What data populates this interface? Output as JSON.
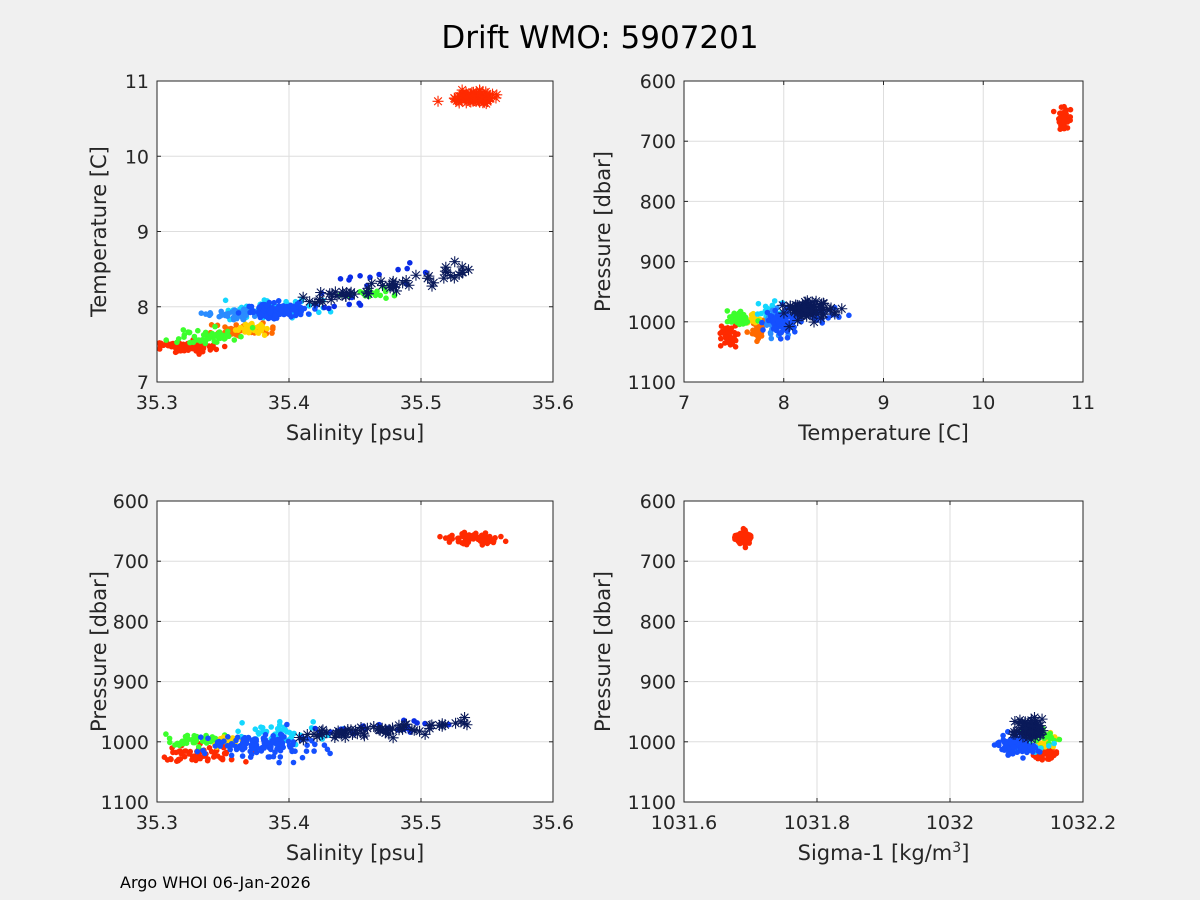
{
  "chart_data": {
    "title": "Drift WMO: 5907201",
    "footer": "Argo WHOI 06-Jan-2026",
    "colors": {
      "background": "#f0f0f0",
      "axes_bg": "#ffffff",
      "grid": "#dedede",
      "star": "#0a1a5a",
      "point_palette": [
        "#ff2a00",
        "#ff6a00",
        "#ffd400",
        "#a8ff00",
        "#3cff2c",
        "#14d7ff",
        "#2a8cff",
        "#1550ff",
        "#0a2ce6"
      ]
    },
    "charts": [
      {
        "type": "scatter",
        "name": "temperature-vs-salinity",
        "xlabel": "Salinity [psu]",
        "ylabel": "Temperature [C]",
        "xlim": [
          35.3,
          35.6
        ],
        "ylim": [
          7,
          11
        ],
        "y_reversed": false,
        "xticks": [
          35.3,
          35.4,
          35.5,
          35.6
        ],
        "xtick_labels": [
          "35.3",
          "35.4",
          "35.5",
          "35.6"
        ],
        "yticks": [
          7,
          8,
          9,
          10,
          11
        ],
        "ytick_labels": [
          "7",
          "8",
          "9",
          "10",
          "11"
        ],
        "clusters": [
          {
            "color": "#ff2a00",
            "cx": 35.32,
            "cy": 7.47,
            "sx": 0.012,
            "sy": 0.04,
            "n": 80
          },
          {
            "color": "#ff6a00",
            "cx": 35.36,
            "cy": 7.68,
            "sx": 0.012,
            "sy": 0.04,
            "n": 40
          },
          {
            "color": "#ffd400",
            "cx": 35.37,
            "cy": 7.72,
            "sx": 0.008,
            "sy": 0.04,
            "n": 30
          },
          {
            "color": "#3cff2c",
            "cx": 35.34,
            "cy": 7.6,
            "sx": 0.012,
            "sy": 0.05,
            "n": 50
          },
          {
            "color": "#14d7ff",
            "cx": 35.39,
            "cy": 7.97,
            "sx": 0.02,
            "sy": 0.06,
            "n": 60
          },
          {
            "color": "#2a8cff",
            "cx": 35.36,
            "cy": 7.9,
            "sx": 0.01,
            "sy": 0.04,
            "n": 40
          },
          {
            "color": "#1550ff",
            "cx": 35.39,
            "cy": 7.95,
            "sx": 0.012,
            "sy": 0.05,
            "n": 120
          },
          {
            "color": "#3cff2c",
            "cx": 35.46,
            "cy": 8.18,
            "sx": 0.012,
            "sy": 0.04,
            "n": 20
          }
        ],
        "lines": [
          {
            "color": "#0a2ce6",
            "x0": 35.42,
            "y0": 8.05,
            "x1": 35.5,
            "y1": 8.55,
            "n": 22,
            "j": 0.1
          }
        ],
        "stars": [
          {
            "color": "#ff2a00",
            "cx": 35.54,
            "cy": 10.78,
            "sx": 0.009,
            "sy": 0.04,
            "n": 70
          },
          {
            "color": "#0a1a5a",
            "x0": 35.41,
            "y0": 8.05,
            "x1": 35.54,
            "y1": 8.5,
            "n": 55,
            "j": 0.05
          }
        ]
      },
      {
        "type": "scatter",
        "name": "pressure-vs-temperature",
        "xlabel": "Temperature [C]",
        "ylabel": "Pressure [dbar]",
        "xlim": [
          7,
          11
        ],
        "ylim": [
          600,
          1100
        ],
        "y_reversed": true,
        "xticks": [
          7,
          8,
          9,
          10,
          11
        ],
        "xtick_labels": [
          "7",
          "8",
          "9",
          "10",
          "11"
        ],
        "yticks": [
          600,
          700,
          800,
          900,
          1000,
          1100
        ],
        "ytick_labels": [
          "600",
          "700",
          "800",
          "900",
          "1000",
          "1100"
        ],
        "clusters": [
          {
            "color": "#ff2a00",
            "cx": 10.8,
            "cy": 662,
            "sx": 0.03,
            "sy": 8,
            "n": 60
          },
          {
            "color": "#ff2a00",
            "cx": 7.45,
            "cy": 1025,
            "sx": 0.05,
            "sy": 8,
            "n": 40
          },
          {
            "color": "#ff6a00",
            "cx": 7.75,
            "cy": 1015,
            "sx": 0.05,
            "sy": 8,
            "n": 20
          },
          {
            "color": "#ffd400",
            "cx": 7.7,
            "cy": 995,
            "sx": 0.04,
            "sy": 6,
            "n": 15
          },
          {
            "color": "#3cff2c",
            "cx": 7.55,
            "cy": 995,
            "sx": 0.06,
            "sy": 6,
            "n": 40
          },
          {
            "color": "#14d7ff",
            "cx": 7.85,
            "cy": 985,
            "sx": 0.06,
            "sy": 10,
            "n": 30
          },
          {
            "color": "#2a8cff",
            "cx": 7.95,
            "cy": 1005,
            "sx": 0.06,
            "sy": 12,
            "n": 40
          },
          {
            "color": "#1550ff",
            "cx": 8.0,
            "cy": 1000,
            "sx": 0.08,
            "sy": 12,
            "n": 90
          },
          {
            "color": "#1550ff",
            "cx": 8.45,
            "cy": 988,
            "sx": 0.15,
            "sy": 8,
            "n": 15
          }
        ],
        "lines": [],
        "stars": [
          {
            "color": "#0a1a5a",
            "cx": 8.25,
            "cy": 978,
            "sx": 0.12,
            "sy": 9,
            "n": 70
          }
        ]
      },
      {
        "type": "scatter",
        "name": "pressure-vs-salinity",
        "xlabel": "Salinity [psu]",
        "ylabel": "Pressure [dbar]",
        "xlim": [
          35.3,
          35.6
        ],
        "ylim": [
          600,
          1100
        ],
        "y_reversed": true,
        "xticks": [
          35.3,
          35.4,
          35.5,
          35.6
        ],
        "xtick_labels": [
          "35.3",
          "35.4",
          "35.5",
          "35.6"
        ],
        "yticks": [
          600,
          700,
          800,
          900,
          1000,
          1100
        ],
        "ytick_labels": [
          "600",
          "700",
          "800",
          "900",
          "1000",
          "1100"
        ],
        "clusters": [
          {
            "color": "#ff2a00",
            "cx": 35.54,
            "cy": 663,
            "sx": 0.009,
            "sy": 5,
            "n": 60
          },
          {
            "color": "#ff2a00",
            "cx": 35.33,
            "cy": 1022,
            "sx": 0.018,
            "sy": 7,
            "n": 60
          },
          {
            "color": "#3cff2c",
            "cx": 35.33,
            "cy": 998,
            "sx": 0.015,
            "sy": 5,
            "n": 40
          },
          {
            "color": "#ffd400",
            "cx": 35.35,
            "cy": 1000,
            "sx": 0.008,
            "sy": 5,
            "n": 15
          },
          {
            "color": "#14d7ff",
            "cx": 35.39,
            "cy": 985,
            "sx": 0.02,
            "sy": 10,
            "n": 40
          },
          {
            "color": "#1550ff",
            "cx": 35.38,
            "cy": 1005,
            "sx": 0.02,
            "sy": 10,
            "n": 120
          }
        ],
        "lines": [
          {
            "color": "#0a2ce6",
            "x0": 35.42,
            "y0": 985,
            "x1": 35.52,
            "y1": 970,
            "n": 25,
            "j": 5
          }
        ],
        "stars": [
          {
            "color": "#0a1a5a",
            "x0": 35.41,
            "y0": 990,
            "x1": 35.54,
            "y1": 968,
            "n": 65,
            "j": 5
          }
        ]
      },
      {
        "type": "scatter",
        "name": "pressure-vs-sigma1",
        "xlabel": "Sigma-1 [kg/m",
        "xlabel_sup": "3",
        "xlabel_end": "]",
        "ylabel": "Pressure [dbar]",
        "xlim": [
          1031.6,
          1032.2
        ],
        "ylim": [
          600,
          1100
        ],
        "y_reversed": true,
        "xticks": [
          1031.6,
          1031.8,
          1032,
          1032.2
        ],
        "xtick_labels": [
          "1031.6",
          "1031.8",
          "1032",
          "1032.2"
        ],
        "yticks": [
          600,
          700,
          800,
          900,
          1000,
          1100
        ],
        "ytick_labels": [
          "600",
          "700",
          "800",
          "900",
          "1000",
          "1100"
        ],
        "clusters": [
          {
            "color": "#ff2a00",
            "cx": 1031.69,
            "cy": 662,
            "sx": 0.007,
            "sy": 6,
            "n": 60
          },
          {
            "color": "#ff2a00",
            "cx": 1032.14,
            "cy": 1020,
            "sx": 0.01,
            "sy": 7,
            "n": 50
          },
          {
            "color": "#ffd400",
            "cx": 1032.15,
            "cy": 1000,
            "sx": 0.008,
            "sy": 7,
            "n": 15
          },
          {
            "color": "#3cff2c",
            "cx": 1032.14,
            "cy": 995,
            "sx": 0.01,
            "sy": 8,
            "n": 30
          },
          {
            "color": "#14d7ff",
            "cx": 1032.12,
            "cy": 1000,
            "sx": 0.014,
            "sy": 10,
            "n": 40
          },
          {
            "color": "#1550ff",
            "cx": 1032.1,
            "cy": 1005,
            "sx": 0.014,
            "sy": 10,
            "n": 90
          }
        ],
        "lines": [],
        "stars": [
          {
            "color": "#0a1a5a",
            "cx": 1032.12,
            "cy": 978,
            "sx": 0.01,
            "sy": 8,
            "n": 70
          }
        ]
      }
    ]
  }
}
